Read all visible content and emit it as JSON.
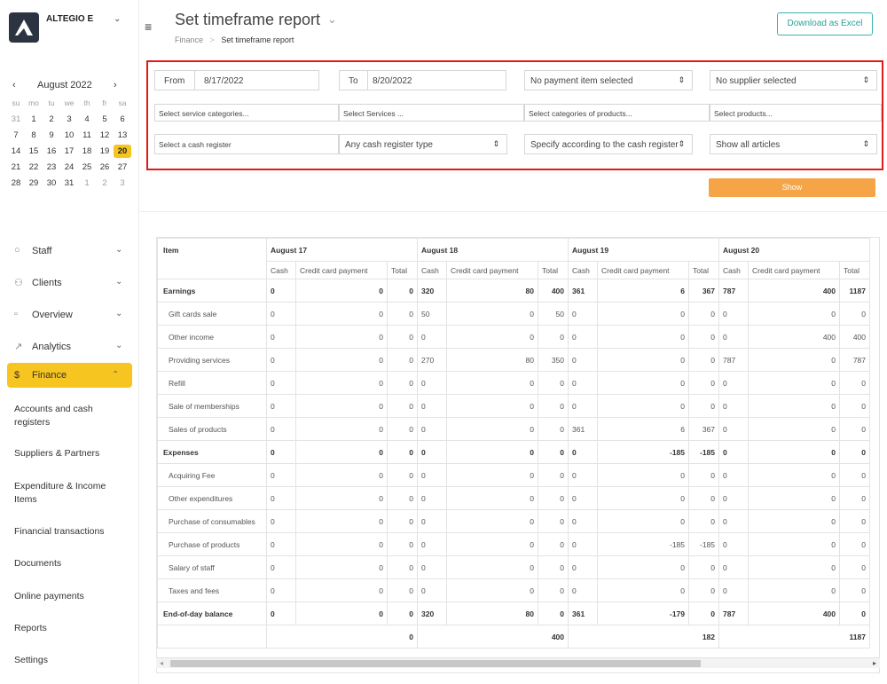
{
  "brand": {
    "name": "ALTEGIO E",
    "chevron": "⌄"
  },
  "calendar": {
    "title": "August 2022",
    "prev": "‹",
    "next": "›",
    "dow": [
      "su",
      "mo",
      "tu",
      "we",
      "th",
      "fr",
      "sa"
    ],
    "weeks": [
      [
        {
          "d": "31",
          "m": true
        },
        {
          "d": "1"
        },
        {
          "d": "2"
        },
        {
          "d": "3"
        },
        {
          "d": "4"
        },
        {
          "d": "5"
        },
        {
          "d": "6"
        }
      ],
      [
        {
          "d": "7"
        },
        {
          "d": "8"
        },
        {
          "d": "9"
        },
        {
          "d": "10"
        },
        {
          "d": "11"
        },
        {
          "d": "12"
        },
        {
          "d": "13"
        }
      ],
      [
        {
          "d": "14"
        },
        {
          "d": "15"
        },
        {
          "d": "16"
        },
        {
          "d": "17"
        },
        {
          "d": "18"
        },
        {
          "d": "19"
        },
        {
          "d": "20",
          "s": true
        }
      ],
      [
        {
          "d": "21"
        },
        {
          "d": "22"
        },
        {
          "d": "23"
        },
        {
          "d": "24"
        },
        {
          "d": "25"
        },
        {
          "d": "26"
        },
        {
          "d": "27"
        }
      ],
      [
        {
          "d": "28"
        },
        {
          "d": "29"
        },
        {
          "d": "30"
        },
        {
          "d": "31"
        },
        {
          "d": "1",
          "m": true
        },
        {
          "d": "2",
          "m": true
        },
        {
          "d": "3",
          "m": true
        }
      ]
    ]
  },
  "nav": {
    "staff": "Staff",
    "clients": "Clients",
    "overview": "Overview",
    "analytics": "Analytics",
    "finance": "Finance",
    "sub": {
      "accounts": "Accounts and cash registers",
      "suppliers": "Suppliers & Partners",
      "expenditure": "Expenditure & Income Items",
      "transactions": "Financial transactions",
      "documents": "Documents",
      "online": "Online payments",
      "reports": "Reports",
      "settings": "Settings"
    }
  },
  "header": {
    "title": "Set timeframe report",
    "breadcrumb_parent": "Finance",
    "breadcrumb_sep": ">",
    "breadcrumb_current": "Set timeframe report",
    "download_label": "Download as Excel"
  },
  "filters": {
    "from_label": "From",
    "from_value": "8/17/2022",
    "to_label": "To",
    "to_value": "8/20/2022",
    "payment_item": "No payment item selected",
    "supplier": "No supplier selected",
    "service_categories": "Select service categories...",
    "services": "Select Services ...",
    "product_categories": "Select categories of products...",
    "products": "Select products...",
    "cash_register": "Select a cash register",
    "cash_register_type": "Any cash register type",
    "cash_register_spec": "Specify according to the cash register",
    "articles": "Show all articles",
    "show_button": "Show"
  },
  "table": {
    "item_header": "Item",
    "days": [
      "August 17",
      "August 18",
      "August 19",
      "August 20"
    ],
    "subheaders": [
      "Cash",
      "Credit card payment",
      "Total"
    ],
    "rows": [
      {
        "label": "Earnings",
        "bold": true,
        "v": [
          "0",
          "0",
          "0",
          "320",
          "80",
          "400",
          "361",
          "6",
          "367",
          "787",
          "400",
          "1187"
        ]
      },
      {
        "label": "Gift cards sale",
        "v": [
          "0",
          "0",
          "0",
          "50",
          "0",
          "50",
          "0",
          "0",
          "0",
          "0",
          "0",
          "0"
        ]
      },
      {
        "label": "Other income",
        "v": [
          "0",
          "0",
          "0",
          "0",
          "0",
          "0",
          "0",
          "0",
          "0",
          "0",
          "400",
          "400"
        ]
      },
      {
        "label": "Providing services",
        "v": [
          "0",
          "0",
          "0",
          "270",
          "80",
          "350",
          "0",
          "0",
          "0",
          "787",
          "0",
          "787"
        ]
      },
      {
        "label": "Refill",
        "v": [
          "0",
          "0",
          "0",
          "0",
          "0",
          "0",
          "0",
          "0",
          "0",
          "0",
          "0",
          "0"
        ]
      },
      {
        "label": "Sale of memberships",
        "v": [
          "0",
          "0",
          "0",
          "0",
          "0",
          "0",
          "0",
          "0",
          "0",
          "0",
          "0",
          "0"
        ]
      },
      {
        "label": "Sales of products",
        "v": [
          "0",
          "0",
          "0",
          "0",
          "0",
          "0",
          "361",
          "6",
          "367",
          "0",
          "0",
          "0"
        ]
      },
      {
        "label": "Expenses",
        "bold": true,
        "v": [
          "0",
          "0",
          "0",
          "0",
          "0",
          "0",
          "0",
          "-185",
          "-185",
          "0",
          "0",
          "0"
        ]
      },
      {
        "label": "Acquiring Fee",
        "v": [
          "0",
          "0",
          "0",
          "0",
          "0",
          "0",
          "0",
          "0",
          "0",
          "0",
          "0",
          "0"
        ]
      },
      {
        "label": "Other expenditures",
        "v": [
          "0",
          "0",
          "0",
          "0",
          "0",
          "0",
          "0",
          "0",
          "0",
          "0",
          "0",
          "0"
        ]
      },
      {
        "label": "Purchase of consumables",
        "v": [
          "0",
          "0",
          "0",
          "0",
          "0",
          "0",
          "0",
          "0",
          "0",
          "0",
          "0",
          "0"
        ]
      },
      {
        "label": "Purchase of products",
        "v": [
          "0",
          "0",
          "0",
          "0",
          "0",
          "0",
          "0",
          "-185",
          "-185",
          "0",
          "0",
          "0"
        ]
      },
      {
        "label": "Salary of staff",
        "v": [
          "0",
          "0",
          "0",
          "0",
          "0",
          "0",
          "0",
          "0",
          "0",
          "0",
          "0",
          "0"
        ]
      },
      {
        "label": "Taxes and fees",
        "v": [
          "0",
          "0",
          "0",
          "0",
          "0",
          "0",
          "0",
          "0",
          "0",
          "0",
          "0",
          "0"
        ]
      },
      {
        "label": "End-of-day balance",
        "bold": true,
        "v": [
          "0",
          "0",
          "0",
          "320",
          "80",
          "0",
          "361",
          "-179",
          "0",
          "787",
          "400",
          "0"
        ]
      }
    ],
    "totals": [
      "0",
      "400",
      "182",
      "1187"
    ]
  },
  "icons": {
    "menu": "≡",
    "select_arrow": "⇕",
    "scroll_left": "◂",
    "scroll_right": "▸"
  },
  "colors": {
    "accent_yellow": "#f7c520",
    "show_button": "#f5a547",
    "excel_button": "#3ab5b0",
    "highlight_border": "#e01919"
  }
}
